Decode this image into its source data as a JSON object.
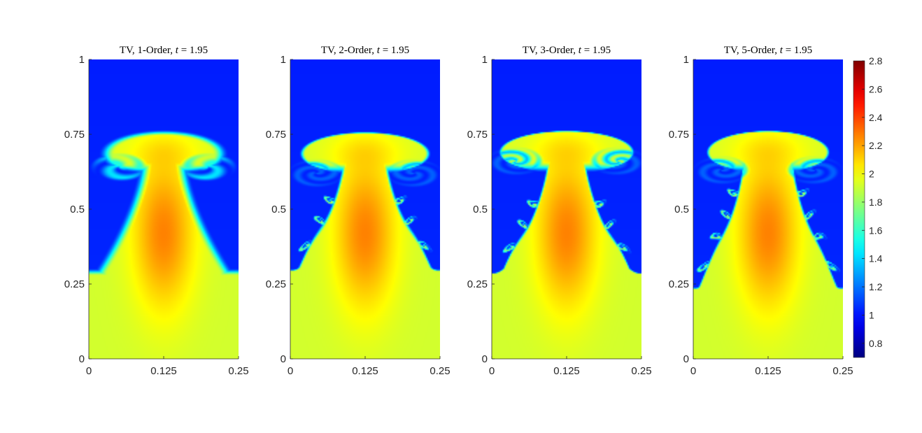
{
  "chart_data": {
    "type": "heatmap",
    "colormap": "jet",
    "clim": [
      0.7,
      2.8
    ],
    "panels": [
      {
        "title_prefix": "TV, 1-Order, ",
        "title_var": "t",
        "title_suffix": " = 1.95",
        "xlim": [
          0,
          0.25
        ],
        "ylim": [
          0,
          1
        ],
        "x_ticks": [
          "0",
          "0.125",
          "0.25"
        ],
        "y_ticks": [
          "0",
          "0.25",
          "0.5",
          "0.75",
          "1"
        ],
        "interface_height": 0.29,
        "cap_top": 0.755,
        "cap_width": 0.095,
        "roll_depth": 0.58,
        "stem_half_width": 0.03,
        "vortex_count": 0,
        "smear": 0.012
      },
      {
        "title_prefix": "TV, 2-Order, ",
        "title_var": "t",
        "title_suffix": " = 1.95",
        "xlim": [
          0,
          0.25
        ],
        "ylim": [
          0,
          1
        ],
        "x_ticks": [
          "0",
          "0.125",
          "0.25"
        ],
        "y_ticks": [
          "0",
          "0.25",
          "0.5",
          "0.75",
          "1"
        ],
        "interface_height": 0.31,
        "cap_top": 0.755,
        "cap_width": 0.105,
        "roll_depth": 0.56,
        "stem_half_width": 0.035,
        "vortex_count": 3,
        "smear": 0.004
      },
      {
        "title_prefix": "TV, 3-Order, ",
        "title_var": "t",
        "title_suffix": " = 1.95",
        "xlim": [
          0,
          0.25
        ],
        "ylim": [
          0,
          1
        ],
        "x_ticks": [
          "0",
          "0.125",
          "0.25"
        ],
        "y_ticks": [
          "0",
          "0.25",
          "0.5",
          "0.75",
          "1"
        ],
        "interface_height": 0.3,
        "cap_top": 0.76,
        "cap_width": 0.11,
        "roll_depth": 0.6,
        "stem_half_width": 0.03,
        "vortex_count": 3,
        "smear": 0.003
      },
      {
        "title_prefix": "TV, 5-Order, ",
        "title_var": "t",
        "title_suffix": " = 1.95",
        "xlim": [
          0,
          0.25
        ],
        "ylim": [
          0,
          1
        ],
        "x_ticks": [
          "0",
          "0.125",
          "0.25"
        ],
        "y_ticks": [
          "0",
          "0.25",
          "0.5",
          "0.75",
          "1"
        ],
        "interface_height": 0.25,
        "cap_top": 0.76,
        "cap_width": 0.1,
        "roll_depth": 0.57,
        "stem_half_width": 0.04,
        "vortex_count": 4,
        "smear": 0.003
      }
    ],
    "colorbar": {
      "ticks": [
        "0.8",
        "1",
        "1.2",
        "1.4",
        "1.6",
        "1.8",
        "2",
        "2.2",
        "2.4",
        "2.6",
        "2.8"
      ],
      "tick_values": [
        0.8,
        1.0,
        1.2,
        1.4,
        1.6,
        1.8,
        2.0,
        2.2,
        2.4,
        2.6,
        2.8
      ]
    }
  }
}
